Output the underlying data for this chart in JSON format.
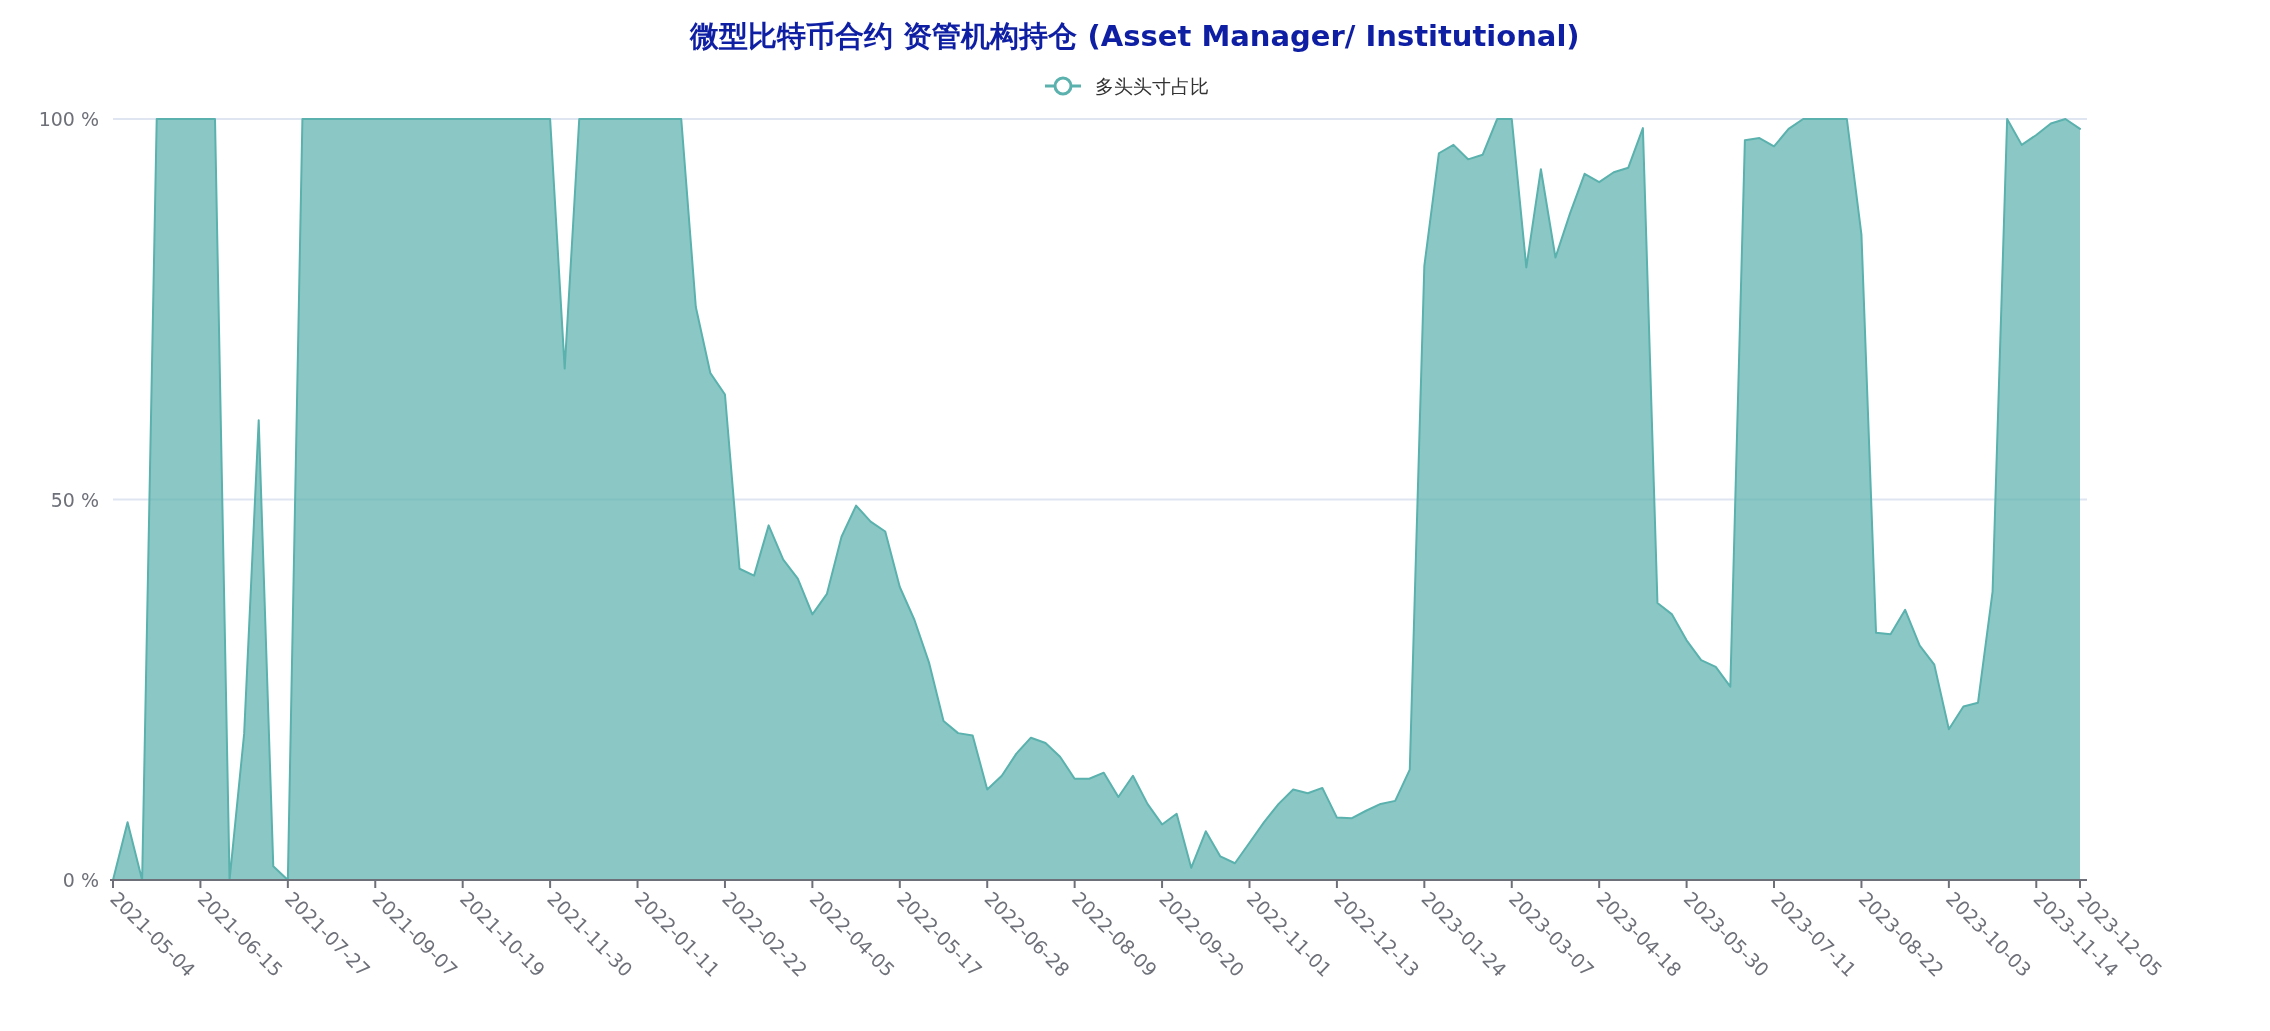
{
  "chart_data": {
    "type": "area",
    "title": "微型比特币合约 资管机构持仓 (Asset Manager/ Institutional)",
    "categories": [
      "2021-05-04",
      null,
      null,
      null,
      null,
      null,
      "2021-06-15",
      null,
      null,
      null,
      null,
      null,
      "2021-07-27",
      null,
      null,
      null,
      null,
      null,
      "2021-09-07",
      null,
      null,
      null,
      null,
      null,
      "2021-10-19",
      null,
      null,
      null,
      null,
      null,
      "2021-11-30",
      null,
      null,
      null,
      null,
      null,
      "2022-01-11",
      null,
      null,
      null,
      null,
      null,
      "2022-02-22",
      null,
      null,
      null,
      null,
      null,
      "2022-04-05",
      null,
      null,
      null,
      null,
      null,
      "2022-05-17",
      null,
      null,
      null,
      null,
      null,
      "2022-06-28",
      null,
      null,
      null,
      null,
      null,
      "2022-08-09",
      null,
      null,
      null,
      null,
      null,
      "2022-09-20",
      null,
      null,
      null,
      null,
      null,
      "2022-11-01",
      null,
      null,
      null,
      null,
      null,
      "2022-12-13",
      null,
      null,
      null,
      null,
      null,
      "2023-01-24",
      null,
      null,
      null,
      null,
      null,
      "2023-03-07",
      null,
      null,
      null,
      null,
      null,
      "2023-04-18",
      null,
      null,
      null,
      null,
      null,
      "2023-05-30",
      null,
      null,
      null,
      null,
      null,
      "2023-07-11",
      null,
      null,
      null,
      null,
      null,
      "2023-08-22",
      null,
      null,
      null,
      null,
      null,
      "2023-10-03",
      null,
      null,
      null,
      null,
      null,
      "2023-11-14",
      null,
      null,
      "2023-12-05"
    ],
    "ylim": [
      0,
      100
    ],
    "yticks": [
      {
        "value": 0,
        "label": "0 %"
      },
      {
        "value": 50,
        "label": "50 %"
      },
      {
        "value": 100,
        "label": "100 %"
      }
    ],
    "grid": "y",
    "legend": "top",
    "series": [
      {
        "name": "多头头寸占比",
        "color": "#5ab1ad",
        "values": [
          0,
          7.6,
          0,
          100,
          100,
          100,
          100,
          100,
          0,
          19.2,
          60.4,
          1.8,
          0,
          100,
          100,
          100,
          100,
          100,
          100,
          100,
          100,
          100,
          100,
          100,
          100,
          100,
          100,
          100,
          100,
          100,
          100,
          67.2,
          100,
          100,
          100,
          100,
          100,
          100,
          100,
          100,
          75.3,
          66.6,
          63.8,
          40.9,
          40.0,
          46.6,
          42.1,
          39.6,
          34.9,
          37.6,
          45.1,
          49.2,
          47.1,
          45.8,
          38.5,
          34.2,
          28.6,
          20.9,
          19.3,
          19.0,
          11.9,
          13.7,
          16.6,
          18.7,
          18.0,
          16.2,
          13.3,
          13.3,
          14.1,
          10.9,
          13.7,
          10.0,
          7.3,
          8.7,
          1.6,
          6.4,
          3.1,
          2.2,
          4.9,
          7.6,
          10.0,
          11.9,
          11.4,
          12.1,
          8.2,
          8.1,
          9.1,
          10.0,
          10.4,
          14.5,
          80.7,
          95.5,
          96.6,
          94.7,
          95.3,
          100,
          100,
          80.5,
          93.4,
          81.8,
          87.6,
          92.8,
          91.7,
          93.0,
          93.6,
          98.8,
          36.4,
          34.9,
          31.5,
          28.9,
          28.0,
          25.4,
          97.2,
          97.5,
          96.4,
          98.7,
          100,
          100,
          100,
          100,
          84.8,
          32.5,
          32.3,
          35.5,
          30.8,
          28.3,
          19.8,
          22.8,
          23.3,
          37.9,
          100,
          96.6,
          97.9,
          99.4,
          100,
          98.7
        ]
      }
    ]
  }
}
